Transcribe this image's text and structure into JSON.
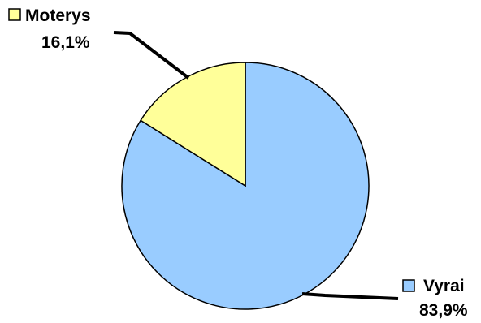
{
  "chart_data": {
    "type": "pie",
    "slices": [
      {
        "label": "Vyrai",
        "value": 83.9,
        "value_label": "83,9%",
        "color": "#99ccff"
      },
      {
        "label": "Moterys",
        "value": 16.1,
        "value_label": "16,1%",
        "color": "#ffff99"
      }
    ],
    "start_angle": "12 o'clock",
    "direction": "clockwise",
    "outline_color": "#000000",
    "legend": "none",
    "labels": "outside with leader lines"
  }
}
